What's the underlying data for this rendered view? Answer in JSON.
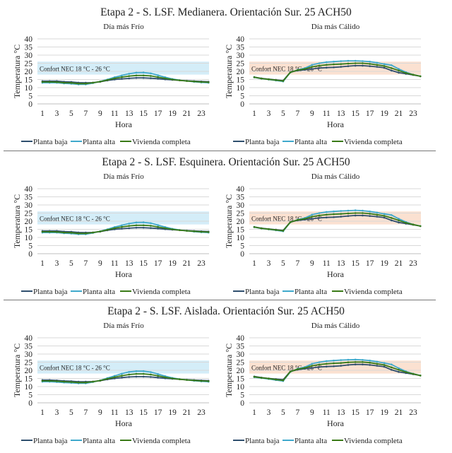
{
  "colors": {
    "planta_baja": "#2f4f6e",
    "planta_alta": "#3fa9cc",
    "vivienda_completa": "#3a7a17",
    "comfort_cold": "#d4edf8",
    "comfort_warm": "#fbe1d1",
    "grid": "#d9d9d9"
  },
  "rows": [
    {
      "title": "Etapa 2 - S. LSF. Medianera. Orientación Sur. 25 ACH50"
    },
    {
      "title": "Etapa 2 - S. LSF. Esquinera. Orientación Sur. 25 ACH50"
    },
    {
      "title": "Etapa 2 - S. LSF. Aislada. Orientación Sur. 25 ACH50"
    }
  ],
  "chart_data": [
    {
      "type": "line",
      "row": 0,
      "title": "Día más Frío",
      "xlabel": "Hora",
      "ylabel": "Temperatura °C",
      "ylim": [
        0,
        40
      ],
      "yticks": [
        0,
        5,
        10,
        15,
        20,
        25,
        30,
        35,
        40
      ],
      "xticks": [
        1,
        3,
        5,
        7,
        9,
        11,
        13,
        15,
        17,
        19,
        21,
        23
      ],
      "x": [
        1,
        2,
        3,
        4,
        5,
        6,
        7,
        8,
        9,
        10,
        11,
        12,
        13,
        14,
        15,
        16,
        17,
        18,
        19,
        20,
        21,
        22,
        23,
        24
      ],
      "band": {
        "range": [
          18,
          26
        ],
        "label": "Confort NEC 18 °C - 26 °C",
        "color": "#d4edf8"
      },
      "grid": true,
      "legend": "bottom",
      "series": [
        {
          "name": "Planta baja",
          "values": [
            14,
            14,
            14,
            13.6,
            13.5,
            13.1,
            13,
            13.1,
            13.6,
            14.4,
            15,
            15.4,
            15.7,
            16,
            16,
            15.8,
            15.5,
            15.1,
            14.8,
            14.5,
            14.2,
            14,
            13.8,
            13.6
          ]
        },
        {
          "name": "Planta alta",
          "values": [
            13,
            13,
            13,
            12.6,
            12.4,
            12,
            12,
            12.8,
            13.8,
            15,
            16.4,
            17.5,
            18.5,
            19.2,
            19.3,
            18.8,
            17.6,
            16.4,
            15.3,
            14.6,
            14.1,
            13.6,
            13.2,
            13
          ]
        },
        {
          "name": "Vivienda completa",
          "values": [
            13.5,
            13.5,
            13.4,
            13,
            12.9,
            12.5,
            12.5,
            13,
            13.7,
            14.7,
            15.7,
            16.5,
            17.1,
            17.5,
            17.5,
            17.2,
            16.5,
            15.7,
            15,
            14.5,
            14.1,
            13.8,
            13.5,
            13.3
          ]
        }
      ]
    },
    {
      "type": "line",
      "row": 0,
      "title": "Día más Cálido",
      "xlabel": "Hora",
      "ylabel": "Temperatura °C",
      "ylim": [
        0,
        40
      ],
      "yticks": [
        0,
        5,
        10,
        15,
        20,
        25,
        30,
        35,
        40
      ],
      "xticks": [
        1,
        3,
        5,
        7,
        9,
        11,
        13,
        15,
        17,
        19,
        21,
        23
      ],
      "x": [
        1,
        2,
        3,
        4,
        5,
        6,
        7,
        8,
        9,
        10,
        11,
        12,
        13,
        14,
        15,
        16,
        17,
        18,
        19,
        20,
        21,
        22,
        23,
        24
      ],
      "band": {
        "range": [
          18,
          26
        ],
        "label": "Confort NEC 18 °C - 26 °C",
        "color": "#fbe1d1"
      },
      "grid": true,
      "legend": "bottom",
      "series": [
        {
          "name": "Planta baja",
          "values": [
            16.5,
            15.7,
            15.2,
            14.8,
            14.3,
            19.5,
            20.5,
            21,
            21.5,
            22,
            22.3,
            22.5,
            22.8,
            23.2,
            23.5,
            23.5,
            23.2,
            22.8,
            22.2,
            20.5,
            19.2,
            18.5,
            17.8,
            17
          ]
        },
        {
          "name": "Planta alta",
          "values": [
            16.3,
            15.5,
            15,
            14.4,
            13.8,
            19.3,
            21,
            22,
            24,
            25,
            25.7,
            26,
            26.3,
            26.5,
            26.5,
            26.3,
            26,
            25.3,
            24.5,
            23.8,
            21.5,
            19.5,
            18,
            17
          ]
        },
        {
          "name": "Vivienda completa",
          "values": [
            16.4,
            15.6,
            15.1,
            14.6,
            14.1,
            19.4,
            20.8,
            21.5,
            22.8,
            23.5,
            24,
            24.3,
            24.5,
            24.8,
            25,
            25,
            24.6,
            24,
            23.3,
            22,
            20.5,
            19,
            17.9,
            17
          ]
        }
      ]
    },
    {
      "type": "line",
      "row": 1,
      "title": "Día más Frío",
      "xlabel": "Hora",
      "ylabel": "Temperatura °C",
      "ylim": [
        0,
        40
      ],
      "yticks": [
        0,
        5,
        10,
        15,
        20,
        25,
        30,
        35,
        40
      ],
      "xticks": [
        1,
        3,
        5,
        7,
        9,
        11,
        13,
        15,
        17,
        19,
        21,
        23
      ],
      "x": [
        1,
        2,
        3,
        4,
        5,
        6,
        7,
        8,
        9,
        10,
        11,
        12,
        13,
        14,
        15,
        16,
        17,
        18,
        19,
        20,
        21,
        22,
        23,
        24
      ],
      "band": {
        "range": [
          18,
          26
        ],
        "label": "Confort NEC 18 °C - 26 °C",
        "color": "#d4edf8"
      },
      "grid": true,
      "legend": "bottom",
      "series": [
        {
          "name": "Planta baja",
          "values": [
            14,
            14,
            14,
            13.6,
            13.5,
            13.1,
            13,
            13.1,
            13.6,
            14.4,
            15,
            15.4,
            15.7,
            16,
            16,
            15.8,
            15.5,
            15.1,
            14.8,
            14.5,
            14.2,
            14,
            13.8,
            13.6
          ]
        },
        {
          "name": "Planta alta",
          "values": [
            13,
            13,
            13,
            12.6,
            12.4,
            12,
            12,
            12.8,
            13.8,
            15,
            16.4,
            17.5,
            18.5,
            19.2,
            19.3,
            18.8,
            17.6,
            16.4,
            15.3,
            14.6,
            14.1,
            13.6,
            13.2,
            13
          ]
        },
        {
          "name": "Vivienda completa",
          "values": [
            13.5,
            13.5,
            13.4,
            13,
            12.9,
            12.5,
            12.5,
            13,
            13.7,
            14.7,
            15.7,
            16.5,
            17.1,
            17.5,
            17.5,
            17.2,
            16.5,
            15.7,
            15,
            14.5,
            14.1,
            13.8,
            13.5,
            13.3
          ]
        }
      ]
    },
    {
      "type": "line",
      "row": 1,
      "title": "Día más Cálido",
      "xlabel": "Hora",
      "ylabel": "Temperatura °C",
      "ylim": [
        0,
        40
      ],
      "yticks": [
        0,
        5,
        10,
        15,
        20,
        25,
        30,
        35,
        40
      ],
      "xticks": [
        1,
        3,
        5,
        7,
        9,
        11,
        13,
        15,
        17,
        19,
        21,
        23
      ],
      "x": [
        1,
        2,
        3,
        4,
        5,
        6,
        7,
        8,
        9,
        10,
        11,
        12,
        13,
        14,
        15,
        16,
        17,
        18,
        19,
        20,
        21,
        22,
        23,
        24
      ],
      "band": {
        "range": [
          18,
          26
        ],
        "label": "Confort NEC 18 °C - 26 °C",
        "color": "#fbe1d1"
      },
      "grid": true,
      "legend": "bottom",
      "series": [
        {
          "name": "Planta baja",
          "values": [
            16.5,
            15.7,
            15.2,
            14.8,
            14.3,
            19.5,
            20.5,
            21,
            21.5,
            22,
            22.3,
            22.5,
            22.8,
            23.2,
            23.5,
            23.5,
            23.2,
            22.8,
            22.2,
            20.5,
            19.2,
            18.5,
            17.8,
            17
          ]
        },
        {
          "name": "Planta alta",
          "values": [
            16.3,
            15.5,
            15,
            14.4,
            13.8,
            19.3,
            21,
            22,
            24,
            25,
            25.7,
            26,
            26.3,
            26.5,
            26.7,
            26.5,
            26,
            25.3,
            24.5,
            23.8,
            21.5,
            19.5,
            18,
            17
          ]
        },
        {
          "name": "Vivienda completa",
          "values": [
            16.4,
            15.6,
            15.1,
            14.6,
            14.1,
            19.4,
            20.8,
            21.5,
            22.8,
            23.5,
            24,
            24.3,
            24.5,
            24.8,
            25,
            25,
            24.6,
            24,
            23.3,
            22,
            20.5,
            19,
            17.9,
            17
          ]
        }
      ]
    },
    {
      "type": "line",
      "row": 2,
      "title": "Día más Frío",
      "xlabel": "Hora",
      "ylabel": "Temperatura °C",
      "ylim": [
        0,
        40
      ],
      "yticks": [
        0,
        5,
        10,
        15,
        20,
        25,
        30,
        35,
        40
      ],
      "xticks": [
        1,
        3,
        5,
        7,
        9,
        11,
        13,
        15,
        17,
        19,
        21,
        23
      ],
      "x": [
        1,
        2,
        3,
        4,
        5,
        6,
        7,
        8,
        9,
        10,
        11,
        12,
        13,
        14,
        15,
        16,
        17,
        18,
        19,
        20,
        21,
        22,
        23,
        24
      ],
      "band": {
        "range": [
          18,
          26
        ],
        "label": "Confort NEC 18 °C - 26 °C",
        "color": "#d4edf8"
      },
      "grid": true,
      "legend": "bottom",
      "series": [
        {
          "name": "Planta baja",
          "values": [
            14,
            14,
            13.8,
            13.5,
            13.3,
            13,
            13,
            13.1,
            13.6,
            14.4,
            15,
            15.5,
            15.9,
            16.1,
            16.1,
            15.9,
            15.5,
            15.1,
            14.8,
            14.5,
            14.2,
            14,
            13.8,
            13.6
          ]
        },
        {
          "name": "Planta alta",
          "values": [
            13,
            13,
            12.8,
            12.5,
            12.3,
            12,
            12,
            12.8,
            13.8,
            15.2,
            16.6,
            17.9,
            19,
            19.5,
            19.5,
            18.9,
            17.7,
            16.4,
            15.3,
            14.6,
            14.1,
            13.6,
            13.2,
            13
          ]
        },
        {
          "name": "Vivienda completa",
          "values": [
            13.5,
            13.5,
            13.3,
            13,
            12.8,
            12.5,
            12.5,
            13,
            13.7,
            14.8,
            15.8,
            16.7,
            17.4,
            17.8,
            17.8,
            17.4,
            16.6,
            15.7,
            15,
            14.5,
            14.1,
            13.8,
            13.5,
            13.3
          ]
        }
      ]
    },
    {
      "type": "line",
      "row": 2,
      "title": "Día más Cálido",
      "xlabel": "Hora",
      "ylabel": "Temperatura °C",
      "ylim": [
        0,
        40
      ],
      "yticks": [
        0,
        5,
        10,
        15,
        20,
        25,
        30,
        35,
        40
      ],
      "xticks": [
        1,
        3,
        5,
        7,
        9,
        11,
        13,
        15,
        17,
        19,
        21,
        23
      ],
      "x": [
        1,
        2,
        3,
        4,
        5,
        6,
        7,
        8,
        9,
        10,
        11,
        12,
        13,
        14,
        15,
        16,
        17,
        18,
        19,
        20,
        21,
        22,
        23,
        24
      ],
      "band": {
        "range": [
          18,
          26
        ],
        "label": "Confort NEC 18 °C - 26 °C",
        "color": "#fbe1d1"
      },
      "grid": true,
      "legend": "bottom",
      "series": [
        {
          "name": "Planta baja",
          "values": [
            16.2,
            15.5,
            15,
            14.6,
            14.2,
            19.3,
            20.4,
            21,
            21.5,
            22,
            22.3,
            22.5,
            22.8,
            23.3,
            23.6,
            23.6,
            23.3,
            22.8,
            22.2,
            20.3,
            19,
            18.3,
            17.6,
            16.8
          ]
        },
        {
          "name": "Planta alta",
          "values": [
            15.8,
            15.2,
            14.7,
            14,
            13.4,
            19,
            21,
            22,
            24,
            25,
            25.7,
            26,
            26.3,
            26.5,
            26.6,
            26.4,
            26,
            25.3,
            24.5,
            23.6,
            21.3,
            19.3,
            17.9,
            16.8
          ]
        },
        {
          "name": "Vivienda completa",
          "values": [
            16,
            15.4,
            14.9,
            14.3,
            13.8,
            19.2,
            20.7,
            21.5,
            22.8,
            23.5,
            24,
            24.3,
            24.5,
            24.9,
            25.1,
            25.1,
            24.7,
            24,
            23.3,
            21.8,
            20.3,
            18.9,
            17.8,
            16.8
          ]
        }
      ]
    }
  ]
}
